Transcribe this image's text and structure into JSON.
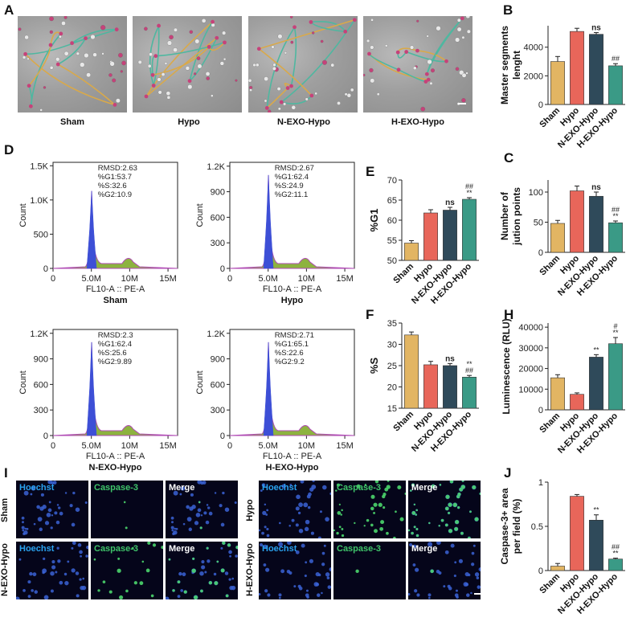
{
  "panels": {
    "A": "A",
    "B": "B",
    "C": "C",
    "D": "D",
    "E": "E",
    "F": "F",
    "G": "H",
    "I": "I",
    "J": "J"
  },
  "groups": [
    "Sham",
    "Hypo",
    "N-EXO-Hypo",
    "H-EXO-Hypo"
  ],
  "stain_labels": {
    "hoechst": "Hoechst",
    "caspase": "Caspase-3",
    "merge": "Merge"
  },
  "flow": {
    "x_label": "FL10-A :: PE-A",
    "y_label": "Count",
    "x_ticks": [
      "0",
      "5.0M",
      "10M",
      "15M"
    ],
    "plots": [
      {
        "name": "Sham",
        "y_ticks": [
          "0",
          "500",
          "1.0K",
          "1.5K"
        ],
        "stats": [
          "RMSD:2.63",
          "%G1:53.7",
          "%S:32.6",
          "%G2:10.9"
        ]
      },
      {
        "name": "Hypo",
        "y_ticks": [
          "0",
          "300",
          "600",
          "900",
          "1.2K"
        ],
        "stats": [
          "RMSD:2.67",
          "%G1:62.4",
          "%S:24.9",
          "%G2:11.1"
        ]
      },
      {
        "name": "N-EXO-Hypo",
        "y_ticks": [
          "0",
          "300",
          "600",
          "900",
          "1.2K"
        ],
        "stats": [
          "RMSD:2.3",
          "%G1:62.4",
          "%S:25.6",
          "%G2:9.89"
        ]
      },
      {
        "name": "H-EXO-Hypo",
        "y_ticks": [
          "0",
          "300",
          "600",
          "900",
          "1.2K"
        ],
        "stats": [
          "RMSD:2.71",
          "%G1:65.1",
          "%S:22.6",
          "%G2:9.2"
        ]
      }
    ]
  },
  "colors": {
    "sham": "#e2b563",
    "hypo": "#e8665a",
    "nexo": "#2f4a5a",
    "hexo": "#3a9a86"
  },
  "chart_data": [
    {
      "id": "B",
      "type": "bar",
      "categories": [
        "Sham",
        "Hypo",
        "N-EXO-Hypo",
        "H-EXO-Hypo"
      ],
      "values": [
        3000,
        5100,
        4900,
        2700
      ],
      "errors": [
        350,
        220,
        120,
        150
      ],
      "ylabel": "Master segments lenght",
      "ylim": [
        0,
        5500
      ],
      "yticks": [
        0,
        2000,
        4000
      ],
      "annotations": [
        "",
        "",
        "ns",
        "##"
      ]
    },
    {
      "id": "C",
      "type": "bar",
      "categories": [
        "Sham",
        "Hypo",
        "N-EXO-Hypo",
        "H-EXO-Hypo"
      ],
      "values": [
        48,
        102,
        93,
        49
      ],
      "errors": [
        5,
        8,
        7,
        3
      ],
      "ylabel": "Number of jution points",
      "ylim": [
        0,
        120
      ],
      "yticks": [
        0,
        50,
        100
      ],
      "annotations": [
        "",
        "",
        "ns",
        "## **"
      ]
    },
    {
      "id": "E",
      "type": "bar",
      "categories": [
        "Sham",
        "Hypo",
        "N-EXO-Hypo",
        "H-EXO-Hypo"
      ],
      "values": [
        54.3,
        61.8,
        62.5,
        65.2
      ],
      "errors": [
        0.6,
        0.8,
        0.7,
        0.4
      ],
      "ylabel": "%G1",
      "ylim": [
        50,
        70
      ],
      "yticks": [
        50,
        55,
        60,
        65,
        70
      ],
      "annotations": [
        "",
        "",
        "ns",
        "## **"
      ]
    },
    {
      "id": "F",
      "type": "bar",
      "categories": [
        "Sham",
        "Hypo",
        "N-EXO-Hypo",
        "H-EXO-Hypo"
      ],
      "values": [
        32.2,
        25.2,
        25.0,
        22.3
      ],
      "errors": [
        0.7,
        0.8,
        0.5,
        0.4
      ],
      "ylabel": "%S",
      "ylim": [
        15,
        35
      ],
      "yticks": [
        15,
        20,
        25,
        30,
        35
      ],
      "annotations": [
        "",
        "",
        "ns",
        "** ##"
      ]
    },
    {
      "id": "H",
      "type": "bar",
      "categories": [
        "Sham",
        "Hypo",
        "N-EXO-Hypo",
        "H-EXO-Hypo"
      ],
      "values": [
        15500,
        7500,
        25500,
        32000
      ],
      "errors": [
        1500,
        700,
        1200,
        3000
      ],
      "ylabel": "Luminescence (RLU)",
      "ylim": [
        0,
        42000
      ],
      "yticks": [
        0,
        10000,
        20000,
        30000,
        40000
      ],
      "annotations": [
        "",
        "",
        "**",
        "# **"
      ]
    },
    {
      "id": "J",
      "type": "bar",
      "categories": [
        "Sham",
        "Hypo",
        "N-EXO-Hypo",
        "H-EXO-Hypo"
      ],
      "values": [
        0.05,
        0.84,
        0.57,
        0.13
      ],
      "errors": [
        0.03,
        0.02,
        0.06,
        0.01
      ],
      "ylabel": "Caspase-3+ area per field (%)",
      "ylim": [
        0,
        1.0
      ],
      "yticks": [
        0.0,
        0.5,
        1.0
      ],
      "annotations": [
        "",
        "",
        "**",
        "## **"
      ]
    }
  ]
}
